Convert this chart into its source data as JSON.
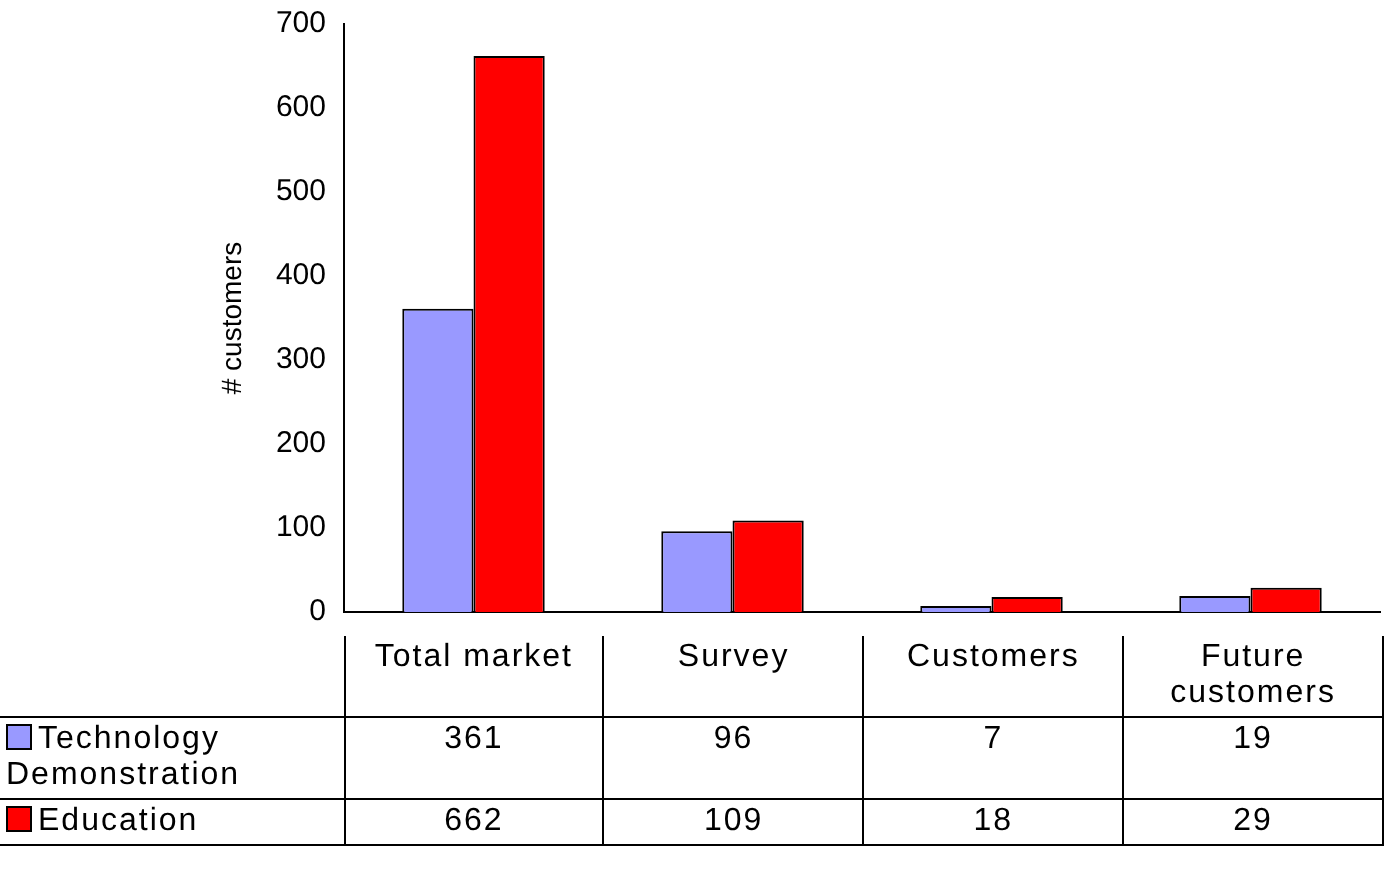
{
  "chart_data": {
    "type": "bar",
    "ylabel": "# customers",
    "categories": [
      "Total market",
      "Survey",
      "Customers",
      "Future customers"
    ],
    "series": [
      {
        "name": "Technology Demonstration",
        "color": "#9999ff",
        "values": [
          361,
          96,
          7,
          19
        ]
      },
      {
        "name": "Education",
        "color": "#ff0000",
        "values": [
          662,
          109,
          18,
          29
        ]
      }
    ],
    "ylim": [
      0,
      700
    ],
    "yticks": [
      0,
      100,
      200,
      300,
      400,
      500,
      600,
      700
    ],
    "data_labels": true,
    "legend": "bottom left"
  }
}
